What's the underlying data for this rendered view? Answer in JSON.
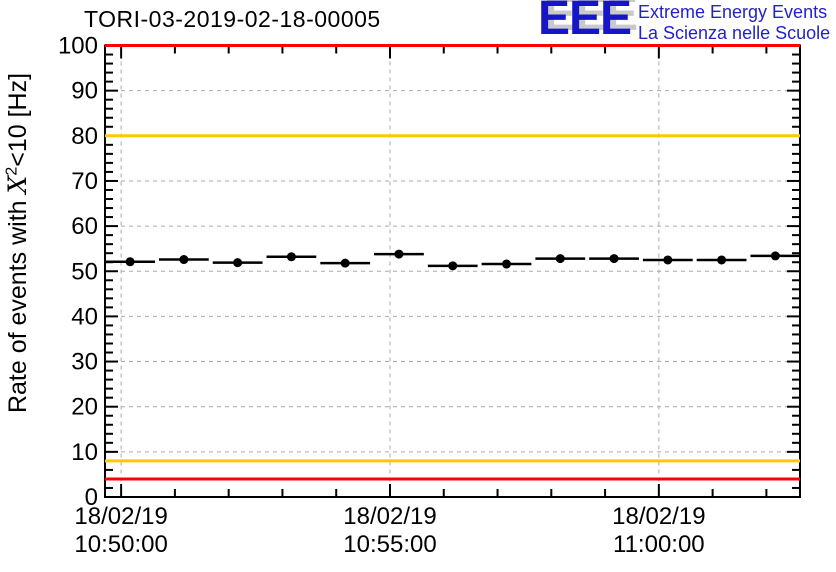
{
  "header": {
    "title": "TORI-03-2019-02-18-00005"
  },
  "logo": {
    "eee": "EEE",
    "line1": "Extreme Energy Events",
    "line2": "La Scienza nelle Scuole",
    "blue": "#2222cc",
    "shadow": "#c9c9c9"
  },
  "axis": {
    "ylabel_pre": "Rate of events with ",
    "ylabel_var": "X",
    "ylabel_sup": "2",
    "ylabel_post": "<10 [Hz]"
  },
  "chart_data": {
    "type": "line",
    "title": "TORI-03-2019-02-18-00005",
    "xlabel": "",
    "ylabel": "Rate of events with X^2<10 [Hz]",
    "ylim": [
      0,
      100
    ],
    "y_major_tick_step": 10,
    "y_minor_tick_step": 2,
    "grid": true,
    "grid_color": "#aaaaaa",
    "date": "18/02/19",
    "x_tick_labels": [
      {
        "t": 0,
        "line1": "18/02/19",
        "line2": "10:50:00"
      },
      {
        "t": 300,
        "line1": "18/02/19",
        "line2": "10:55:00"
      },
      {
        "t": 600,
        "line1": "18/02/19",
        "line2": "11:00:00"
      }
    ],
    "x_minor_tick_step_seconds": 60,
    "x_range_seconds": [
      -18,
      757.5
    ],
    "bin_width_seconds": 60,
    "series": [
      {
        "name": "event-rate",
        "color": "#000000",
        "marker": "filled-circle",
        "t_seconds_from_105000": [
          10,
          70,
          130,
          190,
          250,
          310,
          370,
          430,
          490,
          550,
          610,
          670,
          730
        ],
        "times": [
          "10:50:10",
          "10:51:10",
          "10:52:10",
          "10:53:10",
          "10:54:10",
          "10:55:10",
          "10:56:10",
          "10:57:10",
          "10:58:10",
          "10:59:10",
          "11:00:10",
          "11:01:10",
          "11:02:10"
        ],
        "values": [
          52.1,
          52.6,
          51.9,
          53.2,
          51.8,
          53.8,
          51.2,
          51.6,
          52.8,
          52.8,
          52.5,
          52.5,
          53.4
        ],
        "y_error": 0.9
      }
    ],
    "thresholds": [
      {
        "name": "upper-alarm",
        "value": 100,
        "color": "#ff0000"
      },
      {
        "name": "upper-warning",
        "value": 80,
        "color": "#ffc800"
      },
      {
        "name": "lower-warning",
        "value": 8,
        "color": "#ffc800"
      },
      {
        "name": "lower-alarm",
        "value": 4,
        "color": "#ff0000"
      }
    ]
  }
}
